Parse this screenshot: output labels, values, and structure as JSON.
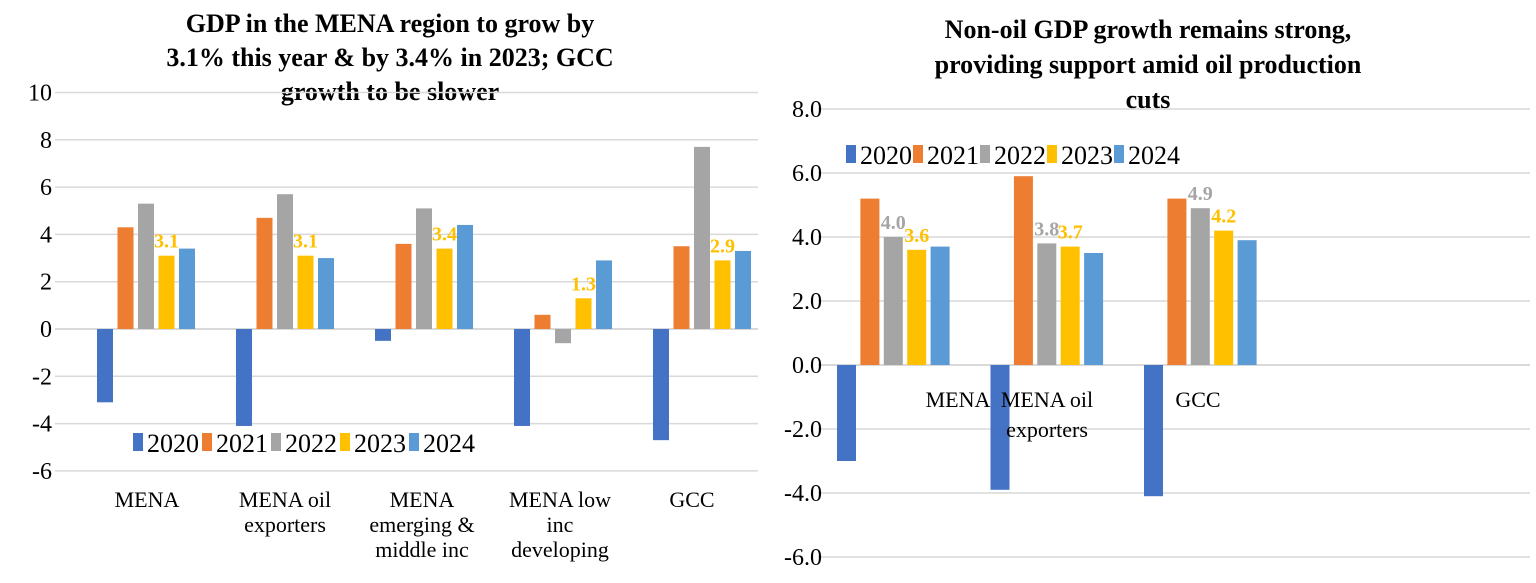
{
  "colors": {
    "2020": "#4472C4",
    "2021": "#ED7D31",
    "2022": "#A5A5A5",
    "2023": "#FFC000",
    "2024": "#5B9BD5"
  },
  "chart_data": [
    {
      "type": "bar",
      "title": [
        "GDP in the MENA region to grow by",
        "3.1% this year & by 3.4% in 2023; GCC",
        "growth to be slower"
      ],
      "categories": [
        [
          "MENA"
        ],
        [
          "MENA oil",
          "exporters"
        ],
        [
          "MENA",
          "emerging &",
          "middle inc"
        ],
        [
          "MENA low",
          "inc",
          "developing"
        ],
        [
          "GCC"
        ]
      ],
      "ylim": [
        -6,
        10
      ],
      "yticks": [
        "10",
        "8",
        "6",
        "4",
        "2",
        "0",
        "-2",
        "-4",
        "-6"
      ],
      "ytick_values": [
        10,
        8,
        6,
        4,
        2,
        0,
        -2,
        -4,
        -6
      ],
      "grid": true,
      "legend_placement": "bottom-inside",
      "series": [
        {
          "name": "2020",
          "values": [
            -3.1,
            -4.1,
            -0.5,
            -4.1,
            -4.7
          ]
        },
        {
          "name": "2021",
          "values": [
            4.3,
            4.7,
            3.6,
            0.6,
            3.5
          ]
        },
        {
          "name": "2022",
          "values": [
            5.3,
            5.7,
            5.1,
            -0.6,
            7.7
          ]
        },
        {
          "name": "2023",
          "values": [
            3.1,
            3.1,
            3.4,
            1.3,
            2.9
          ],
          "labels": [
            "3.1",
            "3.1",
            "3.4",
            "1.3",
            "2.9"
          ]
        },
        {
          "name": "2024",
          "values": [
            3.4,
            3.0,
            4.4,
            2.9,
            3.3
          ]
        }
      ]
    },
    {
      "type": "bar",
      "title": [
        "Non-oil GDP growth remains strong,",
        "providing support amid oil production",
        "cuts"
      ],
      "categories": [
        [
          "MENA"
        ],
        [
          "MENA oil",
          "exporters"
        ],
        [
          "GCC"
        ]
      ],
      "ylim": [
        -6,
        8
      ],
      "yticks": [
        "8.0",
        "6.0",
        "4.0",
        "2.0",
        "0.0",
        "-2.0",
        "-4.0",
        "-6.0"
      ],
      "ytick_values": [
        8,
        6,
        4,
        2,
        0,
        -2,
        -4,
        -6
      ],
      "grid": true,
      "legend_placement": "top-inside",
      "series": [
        {
          "name": "2020",
          "values": [
            -3.0,
            -3.9,
            -4.1
          ]
        },
        {
          "name": "2021",
          "values": [
            5.2,
            5.9,
            5.2
          ]
        },
        {
          "name": "2022",
          "values": [
            4.0,
            3.8,
            4.9
          ],
          "labels": [
            "4.0",
            "3.8",
            "4.9"
          ]
        },
        {
          "name": "2023",
          "values": [
            3.6,
            3.7,
            4.2
          ],
          "labels": [
            "3.6",
            "3.7",
            "4.2"
          ]
        },
        {
          "name": "2024",
          "values": [
            3.7,
            3.5,
            3.9
          ]
        }
      ]
    }
  ]
}
